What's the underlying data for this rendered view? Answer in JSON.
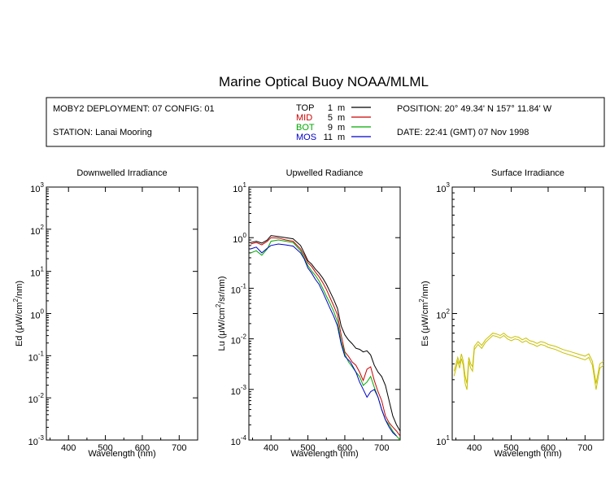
{
  "title": "Marine Optical Buoy NOAA/MLML",
  "info": {
    "deployment": "MOBY2 DEPLOYMENT: 07 CONFIG: 01",
    "station": "STATION: Lanai Mooring",
    "position": "POSITION: 20° 49.34' N   157° 11.84' W",
    "date": "DATE: 22:41 (GMT) 07 Nov 1998"
  },
  "legend": [
    {
      "name": "TOP",
      "depth": "1",
      "unit": "m",
      "color": "#000000"
    },
    {
      "name": "MID",
      "depth": "5",
      "unit": "m",
      "color": "#cc0000"
    },
    {
      "name": "BOT",
      "depth": "9",
      "unit": "m",
      "color": "#00aa00"
    },
    {
      "name": "MOS",
      "depth": "11",
      "unit": "m",
      "color": "#0000cc"
    }
  ],
  "chart_data": [
    {
      "type": "line",
      "title": "Downwelled Irradiance",
      "xlabel": "Wavelength (nm)",
      "ylabel": {
        "prefix": "Ed  (μW/cm",
        "sup": "2",
        "suffix": "/nm)"
      },
      "xlim": [
        340,
        750
      ],
      "ylim": [
        0.001,
        1000
      ],
      "yscale": "log",
      "xticks": [
        400,
        500,
        600,
        700
      ],
      "yticks": [
        {
          "base": "10",
          "exp": "3"
        },
        {
          "base": "10",
          "exp": "2"
        },
        {
          "base": "10",
          "exp": "1"
        },
        {
          "base": "10",
          "exp": "0"
        },
        {
          "base": "10",
          "exp": "-1"
        },
        {
          "base": "10",
          "exp": "-2"
        },
        {
          "base": "10",
          "exp": "-3"
        }
      ],
      "series": []
    },
    {
      "type": "line",
      "title": "Upwelled Radiance",
      "xlabel": "Wavelength (nm)",
      "ylabel": {
        "prefix": "Lu  (μW/cm",
        "sup": "2",
        "suffix": "/sr/nm)"
      },
      "xlim": [
        340,
        750
      ],
      "ylim": [
        0.0001,
        10
      ],
      "yscale": "log",
      "xticks": [
        400,
        500,
        600,
        700
      ],
      "yticks": [
        {
          "base": "10",
          "exp": "1"
        },
        {
          "base": "10",
          "exp": "0"
        },
        {
          "base": "10",
          "exp": "-1"
        },
        {
          "base": "10",
          "exp": "-2"
        },
        {
          "base": "10",
          "exp": "-3"
        },
        {
          "base": "10",
          "exp": "-4"
        }
      ],
      "series": [
        {
          "ref": "TOP",
          "color": "#000000",
          "x": [
            345,
            360,
            375,
            390,
            400,
            420,
            440,
            460,
            480,
            490,
            500,
            510,
            520,
            530,
            540,
            550,
            560,
            570,
            580,
            590,
            600,
            610,
            620,
            630,
            640,
            650,
            660,
            670,
            680,
            690,
            700,
            710,
            720,
            730,
            740,
            750
          ],
          "y": [
            0.8,
            0.85,
            0.78,
            0.9,
            1.1,
            1.05,
            1.0,
            0.95,
            0.7,
            0.5,
            0.35,
            0.3,
            0.24,
            0.2,
            0.16,
            0.12,
            0.085,
            0.06,
            0.04,
            0.018,
            0.012,
            0.0095,
            0.008,
            0.0065,
            0.0062,
            0.0055,
            0.0058,
            0.0048,
            0.003,
            0.0022,
            0.0018,
            0.0012,
            0.0006,
            0.0003,
            0.0002,
            0.00015
          ]
        },
        {
          "ref": "MID",
          "color": "#cc0000",
          "x": [
            345,
            360,
            375,
            390,
            400,
            420,
            440,
            460,
            480,
            490,
            500,
            510,
            520,
            530,
            540,
            550,
            560,
            570,
            580,
            590,
            600,
            610,
            620,
            630,
            640,
            650,
            660,
            670,
            680,
            690,
            700,
            710,
            720,
            730,
            740,
            750
          ],
          "y": [
            0.75,
            0.8,
            0.72,
            0.85,
            1.0,
            0.98,
            0.9,
            0.85,
            0.6,
            0.45,
            0.32,
            0.27,
            0.21,
            0.17,
            0.13,
            0.095,
            0.065,
            0.045,
            0.03,
            0.012,
            0.0055,
            0.0045,
            0.0035,
            0.003,
            0.0022,
            0.0015,
            0.0025,
            0.0028,
            0.0015,
            0.0009,
            0.0006,
            0.0003,
            0.00022,
            0.00018,
            0.00015,
            0.00012
          ]
        },
        {
          "ref": "BOT",
          "color": "#00aa00",
          "x": [
            345,
            360,
            375,
            390,
            400,
            420,
            440,
            460,
            480,
            490,
            500,
            510,
            520,
            530,
            540,
            550,
            560,
            570,
            580,
            590,
            600,
            610,
            620,
            630,
            640,
            650,
            660,
            670,
            680,
            690,
            700,
            710,
            720,
            730,
            740,
            750
          ],
          "y": [
            0.5,
            0.55,
            0.45,
            0.6,
            0.85,
            0.9,
            0.85,
            0.8,
            0.55,
            0.4,
            0.28,
            0.22,
            0.18,
            0.14,
            0.1,
            0.07,
            0.05,
            0.035,
            0.022,
            0.009,
            0.005,
            0.0035,
            0.0028,
            0.0022,
            0.0018,
            0.0012,
            0.0014,
            0.0018,
            0.0011,
            0.0007,
            0.0004,
            0.00025,
            0.0002,
            0.00015,
            0.00012,
            0.0001
          ]
        },
        {
          "ref": "MOS",
          "color": "#0000cc",
          "x": [
            345,
            360,
            375,
            390,
            400,
            420,
            440,
            460,
            480,
            490,
            500,
            510,
            520,
            530,
            540,
            550,
            560,
            570,
            580,
            590,
            600,
            615,
            630,
            640,
            650,
            660,
            670,
            680,
            690,
            700,
            710,
            720,
            730,
            740
          ],
          "y": [
            0.6,
            0.65,
            0.5,
            0.62,
            0.7,
            0.75,
            0.72,
            0.68,
            0.5,
            0.38,
            0.25,
            0.2,
            0.15,
            0.12,
            0.085,
            0.058,
            0.04,
            0.028,
            0.018,
            0.008,
            0.0045,
            0.0035,
            0.0022,
            0.0014,
            0.001,
            0.0007,
            0.0009,
            0.001,
            0.0007,
            0.0004,
            0.00025,
            0.00018,
            0.00014,
            0.00012
          ]
        }
      ]
    },
    {
      "type": "line",
      "title": "Surface Irradiance",
      "xlabel": "Wavelength (nm)",
      "ylabel": {
        "prefix": "Es  (μW/cm",
        "sup": "2",
        "suffix": "/nm)"
      },
      "xlim": [
        340,
        750
      ],
      "ylim": [
        10,
        1000
      ],
      "yscale": "log",
      "xticks": [
        400,
        500,
        600,
        700
      ],
      "yticks": [
        {
          "base": "10",
          "exp": "3"
        },
        {
          "base": "10",
          "exp": "2"
        },
        {
          "base": "10",
          "exp": "1"
        }
      ],
      "series": [
        {
          "ref": "Es-1",
          "color": "#c8c000",
          "x": [
            345,
            355,
            360,
            365,
            370,
            375,
            380,
            385,
            390,
            395,
            400,
            410,
            420,
            430,
            440,
            450,
            460,
            470,
            480,
            490,
            500,
            510,
            520,
            530,
            540,
            550,
            560,
            570,
            580,
            590,
            600,
            620,
            640,
            660,
            680,
            700,
            710,
            720,
            730,
            740,
            750
          ],
          "y": [
            35,
            45,
            40,
            48,
            42,
            32,
            28,
            45,
            40,
            38,
            55,
            60,
            56,
            62,
            66,
            70,
            69,
            67,
            70,
            66,
            64,
            66,
            65,
            62,
            64,
            61,
            60,
            58,
            60,
            59,
            57,
            55,
            52,
            50,
            48,
            46,
            48,
            42,
            28,
            40,
            42
          ]
        },
        {
          "ref": "Es-2",
          "color": "#c8c000",
          "x": [
            345,
            355,
            360,
            365,
            370,
            375,
            380,
            385,
            390,
            395,
            400,
            410,
            420,
            430,
            440,
            450,
            460,
            470,
            480,
            490,
            500,
            510,
            520,
            530,
            540,
            550,
            560,
            570,
            580,
            590,
            600,
            620,
            640,
            660,
            680,
            700,
            710,
            720,
            730,
            740,
            750
          ],
          "y": [
            32,
            42,
            37,
            44,
            39,
            28,
            25,
            42,
            37,
            35,
            52,
            57,
            53,
            59,
            63,
            67,
            66,
            64,
            67,
            63,
            61,
            63,
            62,
            59,
            61,
            58,
            57,
            55,
            57,
            56,
            54,
            52,
            49,
            47,
            45,
            43,
            45,
            39,
            25,
            37,
            39
          ]
        }
      ]
    }
  ]
}
